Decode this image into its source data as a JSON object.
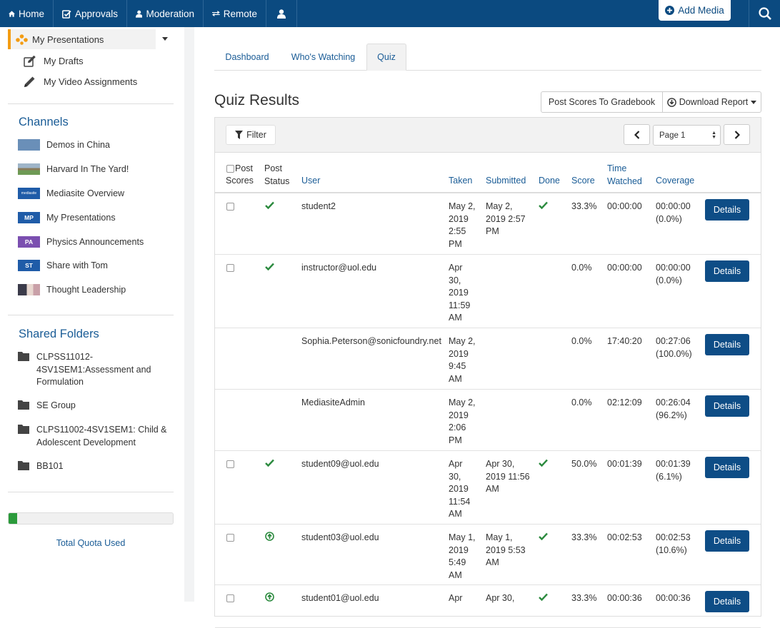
{
  "nav": {
    "home": "Home",
    "approvals": "Approvals",
    "moderation": "Moderation",
    "remote": "Remote",
    "add_media": "Add Media"
  },
  "sidebar": {
    "my_presentations": "My Presentations",
    "my_drafts": "My Drafts",
    "my_video_assignments": "My Video Assignments",
    "channels_heading": "Channels",
    "channels": [
      {
        "label": "Demos in China",
        "thumb": "",
        "color": "#6a8fb8"
      },
      {
        "label": "Harvard In The Yard!",
        "thumb": "",
        "color": "#7d9a6b"
      },
      {
        "label": "Mediasite Overview",
        "thumb": "mediasite",
        "color": "#1f5ca8"
      },
      {
        "label": "My Presentations",
        "thumb": "MP",
        "color": "#1f5ca8"
      },
      {
        "label": "Physics Announcements",
        "thumb": "PA",
        "color": "#7b4fb0"
      },
      {
        "label": "Share with Tom",
        "thumb": "ST",
        "color": "#1f5ca8"
      },
      {
        "label": "Thought Leadership",
        "thumb": "",
        "color": "#c9a9a0"
      }
    ],
    "shared_heading": "Shared Folders",
    "folders": [
      [
        "CLPSS11012-",
        "4SV1SEM1:Assessment and",
        "Formulation"
      ],
      [
        "SE Group"
      ],
      [
        "CLPS11002-4SV1SEM1: Child &",
        "Adolescent Development"
      ],
      [
        "BB101"
      ]
    ],
    "quota_label": "Total Quota Used",
    "quota_fraction": 0.05
  },
  "tabs": [
    "Dashboard",
    "Who's Watching",
    "Quiz"
  ],
  "main": {
    "title": "Quiz Results",
    "post_scores": "Post Scores To Gradebook",
    "download_report": "Download Report",
    "filter": "Filter",
    "page": "Page 1"
  },
  "table": {
    "headers": {
      "post_scores": [
        "Post",
        "Scores"
      ],
      "post_status": [
        "Post",
        "Status"
      ],
      "user": "User",
      "taken": "Taken",
      "submitted": "Submitted",
      "done": "Done",
      "score": "Score",
      "time_watched": [
        "Time",
        "Watched"
      ],
      "coverage": "Coverage"
    },
    "details_label": "Details",
    "rows": [
      {
        "checkbox": true,
        "status": "check",
        "user": "student2",
        "taken": [
          "May 2,",
          "2019",
          "2:55",
          "PM"
        ],
        "submitted": [
          "May 2,",
          "2019 2:57",
          "PM"
        ],
        "done": true,
        "score": "33.3%",
        "time": "00:00:00",
        "coverage": [
          "00:00:00",
          "(0.0%)"
        ]
      },
      {
        "checkbox": true,
        "status": "check",
        "user": "instructor@uol.edu",
        "taken": [
          "Apr",
          "30,",
          "2019",
          "11:59",
          "AM"
        ],
        "submitted": [],
        "done": false,
        "score": "0.0%",
        "time": "00:00:00",
        "coverage": [
          "00:00:00",
          "(0.0%)"
        ]
      },
      {
        "checkbox": false,
        "status": "",
        "user": "Sophia.Peterson@sonicfoundry.net",
        "taken": [
          "May 2,",
          "2019",
          "9:45",
          "AM"
        ],
        "submitted": [],
        "done": false,
        "score": "0.0%",
        "time": "17:40:20",
        "coverage": [
          "00:27:06",
          "(100.0%)"
        ]
      },
      {
        "checkbox": false,
        "status": "",
        "user": "MediasiteAdmin",
        "taken": [
          "May 2,",
          "2019",
          "2:06",
          "PM"
        ],
        "submitted": [],
        "done": false,
        "score": "0.0%",
        "time": "02:12:09",
        "coverage": [
          "00:26:04",
          "(96.2%)"
        ]
      },
      {
        "checkbox": true,
        "status": "check",
        "user": "student09@uol.edu",
        "taken": [
          "Apr",
          "30,",
          "2019",
          "11:54",
          "AM"
        ],
        "submitted": [
          "Apr 30,",
          "2019 11:56",
          "AM"
        ],
        "done": true,
        "score": "50.0%",
        "time": "00:01:39",
        "coverage": [
          "00:01:39",
          "(6.1%)"
        ]
      },
      {
        "checkbox": true,
        "status": "upload",
        "user": "student03@uol.edu",
        "taken": [
          "May 1,",
          "2019",
          "5:49",
          "AM"
        ],
        "submitted": [
          "May 1,",
          "2019 5:53",
          "AM"
        ],
        "done": true,
        "score": "33.3%",
        "time": "00:02:53",
        "coverage": [
          "00:02:53",
          "(10.6%)"
        ]
      },
      {
        "checkbox": true,
        "status": "upload",
        "user": "student01@uol.edu",
        "taken": [
          "Apr"
        ],
        "submitted": [
          "Apr 30,"
        ],
        "done": true,
        "score": "33.3%",
        "time": "00:00:36",
        "coverage": [
          "00:00:36"
        ]
      }
    ]
  }
}
